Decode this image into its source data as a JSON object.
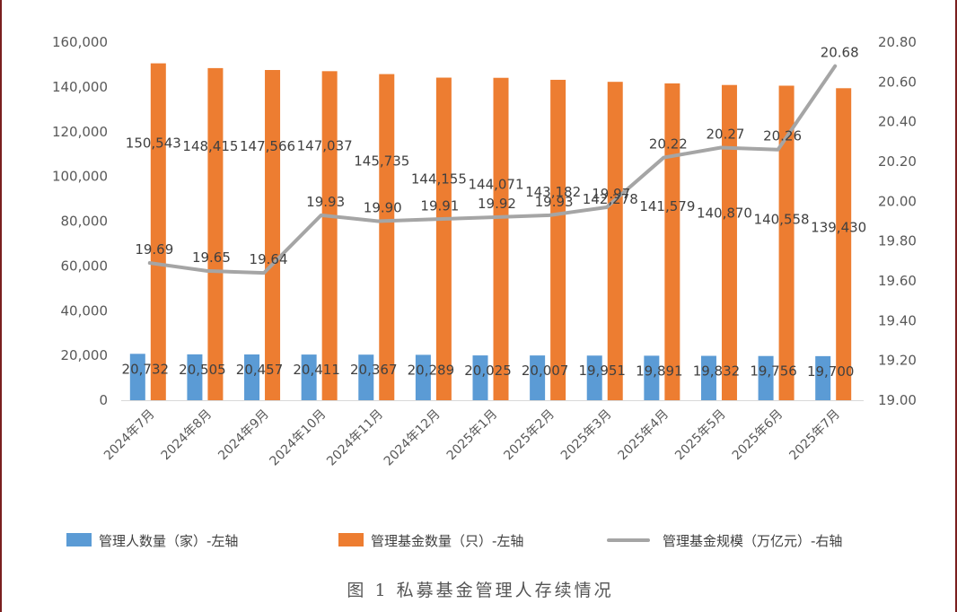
{
  "caption": "图 1 私募基金管理人存续情况",
  "chart_data": {
    "type": "bar",
    "categories": [
      "2024年7月",
      "2024年8月",
      "2024年9月",
      "2024年10月",
      "2024年11月",
      "2024年12月",
      "2025年1月",
      "2025年2月",
      "2025年3月",
      "2025年4月",
      "2025年5月",
      "2025年6月",
      "2025年7月"
    ],
    "series": [
      {
        "name": "管理人数量（家）-左轴",
        "type": "bar",
        "axis": "left",
        "color": "#5b9bd5",
        "values": [
          20732,
          20505,
          20457,
          20411,
          20367,
          20289,
          20025,
          20007,
          19951,
          19891,
          19832,
          19756,
          19700
        ],
        "labels": [
          "20,732",
          "20,505",
          "20,457",
          "20,411",
          "20,367",
          "20,289",
          "20,025",
          "20,007",
          "19,951",
          "19,891",
          "19,832",
          "19,756",
          "19,700"
        ]
      },
      {
        "name": "管理基金数量（只）-左轴",
        "type": "bar",
        "axis": "left",
        "color": "#ed7d31",
        "values": [
          150543,
          148415,
          147566,
          147037,
          145735,
          144155,
          144071,
          143182,
          142278,
          141579,
          140870,
          140558,
          139430
        ],
        "labels": [
          "150,543",
          "148,415",
          "147,566",
          "147,037",
          "145,735",
          "144,155",
          "144,071",
          "143,182",
          "142,278",
          "141,579",
          "140,870",
          "140,558",
          "139,430"
        ]
      },
      {
        "name": "管理基金规模（万亿元）-右轴",
        "type": "line",
        "axis": "right",
        "color": "#a5a5a5",
        "values": [
          19.69,
          19.65,
          19.64,
          19.93,
          19.9,
          19.91,
          19.92,
          19.93,
          19.97,
          20.22,
          20.27,
          20.26,
          20.68
        ],
        "labels": [
          "19.69",
          "19.65",
          "19.64",
          "19.93",
          "19.90",
          "19.91",
          "19.92",
          "19.93",
          "19.97",
          "20.22",
          "20.27",
          "20.26",
          "20.68"
        ]
      }
    ],
    "y_left": {
      "min": 0,
      "max": 160000,
      "ticks": [
        "0",
        "20,000",
        "40,000",
        "60,000",
        "80,000",
        "100,000",
        "120,000",
        "140,000",
        "160,000"
      ]
    },
    "y_right": {
      "min": 19.0,
      "max": 20.8,
      "ticks": [
        "19.00",
        "19.20",
        "19.40",
        "19.60",
        "19.80",
        "20.00",
        "20.20",
        "20.40",
        "20.60",
        "20.80"
      ]
    },
    "grid": false,
    "legend_position": "bottom"
  }
}
